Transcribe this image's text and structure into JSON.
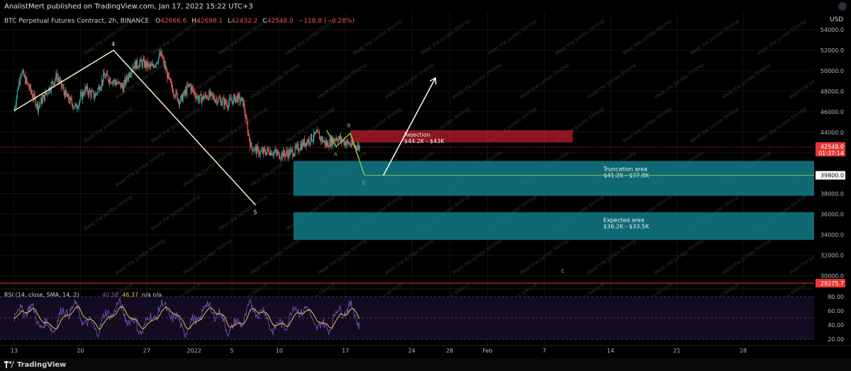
{
  "header": {
    "published_by": "AnalistMert published on TradingView.com, Jan 17, 2022 15:22 UTC+3"
  },
  "footer": {
    "brand": "TradingView"
  },
  "legend": {
    "symbol": "BTC Perpetual Futures Contract, 2h, BINANCE",
    "o_label": "O",
    "o_value": "42666.6",
    "h_label": "H",
    "h_value": "42698.1",
    "l_label": "L",
    "l_value": "42432.2",
    "c_label": "C",
    "c_value": "42548.0",
    "change": "−118.8 (−0.28%)"
  },
  "watermark": "Meet the Jumbo Shrimp",
  "colors": {
    "bg": "#000000",
    "rejection_zone": "#b71c2b",
    "target_zone": "#117b88",
    "price_line": "#e53935",
    "green_line": "#8bc34a",
    "wave_line": "#f0f0c8",
    "rsi_line": "#7e57c2",
    "rsi_sma": "#e6c34a",
    "axis_text": "#b2b5be"
  },
  "chart_data": {
    "type": "candlestick",
    "currency": "USD",
    "ylim": [
      19000,
      55000
    ],
    "yticks": [
      54000,
      52000,
      50000,
      48000,
      46000,
      44000,
      42000,
      40000,
      38000,
      36000,
      34000,
      32000,
      30000
    ],
    "ytick_labels": [
      "54000.0",
      "52000.0",
      "50000.0",
      "48000.0",
      "46000.0",
      "44000.0",
      "42000.0",
      "40000.0",
      "38000.0",
      "36000.0",
      "34000.0",
      "32000.0",
      "30000.0"
    ],
    "xlabels": [
      "13",
      "20",
      "27",
      "2022",
      "5",
      "10",
      "17",
      "24",
      "28",
      "Feb",
      "7",
      "14",
      "21",
      "28"
    ],
    "xdays": [
      0,
      7,
      14,
      19,
      23,
      28,
      35,
      42,
      46,
      50,
      56,
      63,
      70,
      77
    ],
    "x_last_day": 84,
    "price_path": [
      [
        0,
        46200
      ],
      [
        0.7,
        50000
      ],
      [
        1.5,
        48500
      ],
      [
        2.5,
        46500
      ],
      [
        3.5,
        48000
      ],
      [
        4.5,
        49500
      ],
      [
        5.5,
        47500
      ],
      [
        6.5,
        46400
      ],
      [
        7.5,
        48200
      ],
      [
        8.5,
        47500
      ],
      [
        9.5,
        49500
      ],
      [
        10.5,
        49000
      ],
      [
        11.5,
        48400
      ],
      [
        12.5,
        50500
      ],
      [
        13.5,
        50800
      ],
      [
        14.5,
        50300
      ],
      [
        15.5,
        51600
      ],
      [
        16.5,
        48600
      ],
      [
        17.5,
        47000
      ],
      [
        18.5,
        48600
      ],
      [
        19.5,
        47200
      ],
      [
        20.5,
        47600
      ],
      [
        21.5,
        47200
      ],
      [
        22.5,
        46800
      ],
      [
        23.5,
        47400
      ],
      [
        24.2,
        46900
      ],
      [
        24.5,
        45000
      ],
      [
        25,
        42600
      ],
      [
        26,
        42000
      ],
      [
        27,
        42200
      ],
      [
        28,
        41800
      ],
      [
        29.5,
        42100
      ],
      [
        30.5,
        42900
      ],
      [
        31,
        43200
      ],
      [
        32,
        43800
      ],
      [
        33,
        42800
      ],
      [
        34,
        43500
      ],
      [
        35.5,
        42800
      ],
      [
        36.5,
        42548
      ]
    ],
    "last_price": 42548.0,
    "last_price_label": "42548.0",
    "countdown": "01:37:14",
    "green_level": 39800,
    "green_level_label": "39800.0",
    "red_level": 29275.7,
    "red_level_label": "29275.7",
    "zones": [
      {
        "name": "Rejection",
        "range_text": "$44.2K - $43K",
        "top": 44200,
        "bottom": 43000,
        "from_day": 35.5,
        "to_day": 59
      },
      {
        "name": "Truncation area",
        "range_text": "$41.2K - $37.8K",
        "top": 41200,
        "bottom": 37800,
        "from_day": 29.5,
        "to_day": 89
      },
      {
        "name": "Expected area",
        "range_text": "$36.2K - $33.5K",
        "top": 36200,
        "bottom": 33500,
        "from_day": 29.5,
        "to_day": 89
      }
    ],
    "wave_main": [
      {
        "day": 0,
        "price": 46100
      },
      {
        "day": 10.5,
        "price": 52000
      },
      {
        "day": 25.5,
        "price": 36900
      }
    ],
    "wave_main_labels": [
      {
        "text": "4",
        "day": 10.5,
        "price": 52400
      },
      {
        "text": "5",
        "day": 25.5,
        "price": 36000
      }
    ],
    "wave_abc": [
      {
        "day": 33,
        "price": 44200
      },
      {
        "day": 34,
        "price": 42600
      },
      {
        "day": 35.5,
        "price": 43900
      },
      {
        "day": 37,
        "price": 39800
      }
    ],
    "wave_abc_labels": [
      {
        "text": "A",
        "day": 34,
        "price": 41700
      },
      {
        "text": "B",
        "day": 35.4,
        "price": 44500
      },
      {
        "text": "C",
        "day": 37,
        "price": 38900
      },
      {
        "text": "C",
        "day": 58,
        "price": 30300
      }
    ],
    "arrow": {
      "from_day": 39,
      "from_price": 39800,
      "to_day": 44.5,
      "to_price": 49300
    },
    "rsi": {
      "label": "RSI (14, close, SMA, 14, 2)",
      "value": "40.58",
      "sma_value": "46.37",
      "na": "n/a  n/a",
      "ylim": [
        15,
        85
      ],
      "yticks": [
        80,
        60,
        40,
        20
      ],
      "ytick_labels": [
        "80.00",
        "60.00",
        "40.00",
        "20.00"
      ]
    }
  }
}
